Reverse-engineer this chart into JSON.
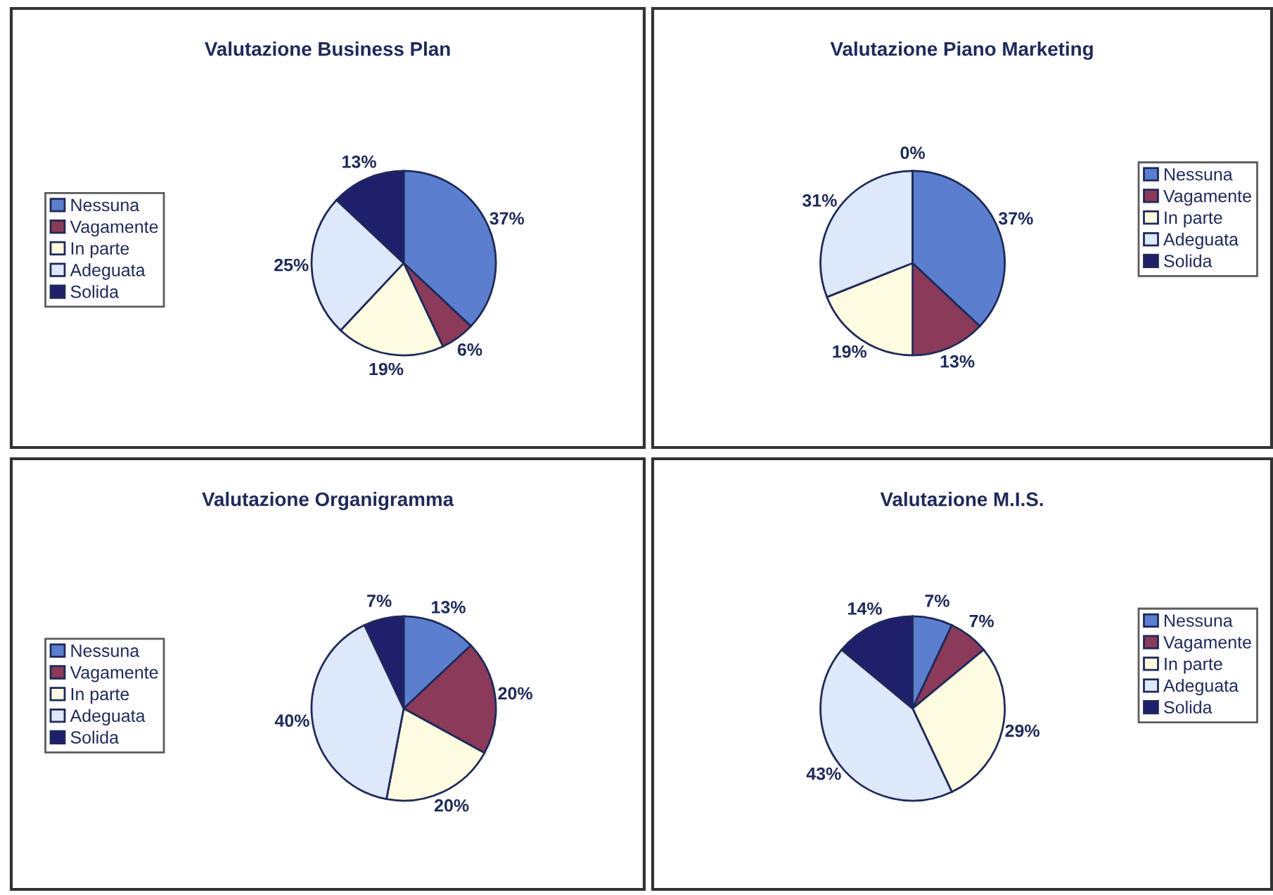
{
  "chart_data": [
    {
      "type": "pie",
      "title": "Valutazione Business Plan",
      "categories": [
        "Nessuna",
        "Vagamente",
        "In parte",
        "Adeguata",
        "Solida"
      ],
      "values": [
        37,
        6,
        19,
        25,
        13
      ],
      "value_labels": [
        "37%",
        "6%",
        "19%",
        "25%",
        "13%"
      ],
      "colors": [
        "#5b7fce",
        "#8b3a5a",
        "#fdfbe0",
        "#dde8fb",
        "#1f1f6b"
      ],
      "legend": "left"
    },
    {
      "type": "pie",
      "title": "Valutazione Piano Marketing",
      "categories": [
        "Nessuna",
        "Vagamente",
        "In parte",
        "Adeguata",
        "Solida"
      ],
      "values": [
        37,
        13,
        19,
        31,
        0
      ],
      "value_labels": [
        "37%",
        "13%",
        "19%",
        "31%",
        "0%"
      ],
      "colors": [
        "#5b7fce",
        "#8b3a5a",
        "#fdfbe0",
        "#dde8fb",
        "#1f1f6b"
      ],
      "legend": "right"
    },
    {
      "type": "pie",
      "title": "Valutazione Organigramma",
      "categories": [
        "Nessuna",
        "Vagamente",
        "In parte",
        "Adeguata",
        "Solida"
      ],
      "values": [
        13,
        20,
        20,
        40,
        7
      ],
      "value_labels": [
        "13%",
        "20%",
        "20%",
        "40%",
        "7%"
      ],
      "colors": [
        "#5b7fce",
        "#8b3a5a",
        "#fdfbe0",
        "#dde8fb",
        "#1f1f6b"
      ],
      "legend": "left"
    },
    {
      "type": "pie",
      "title": "Valutazione M.I.S.",
      "categories": [
        "Nessuna",
        "Vagamente",
        "In parte",
        "Adeguata",
        "Solida"
      ],
      "values": [
        7,
        7,
        29,
        43,
        14
      ],
      "value_labels": [
        "7%",
        "7%",
        "29%",
        "43%",
        "14%"
      ],
      "colors": [
        "#5b7fce",
        "#8b3a5a",
        "#fdfbe0",
        "#dde8fb",
        "#1f1f6b"
      ],
      "legend": "right"
    }
  ]
}
